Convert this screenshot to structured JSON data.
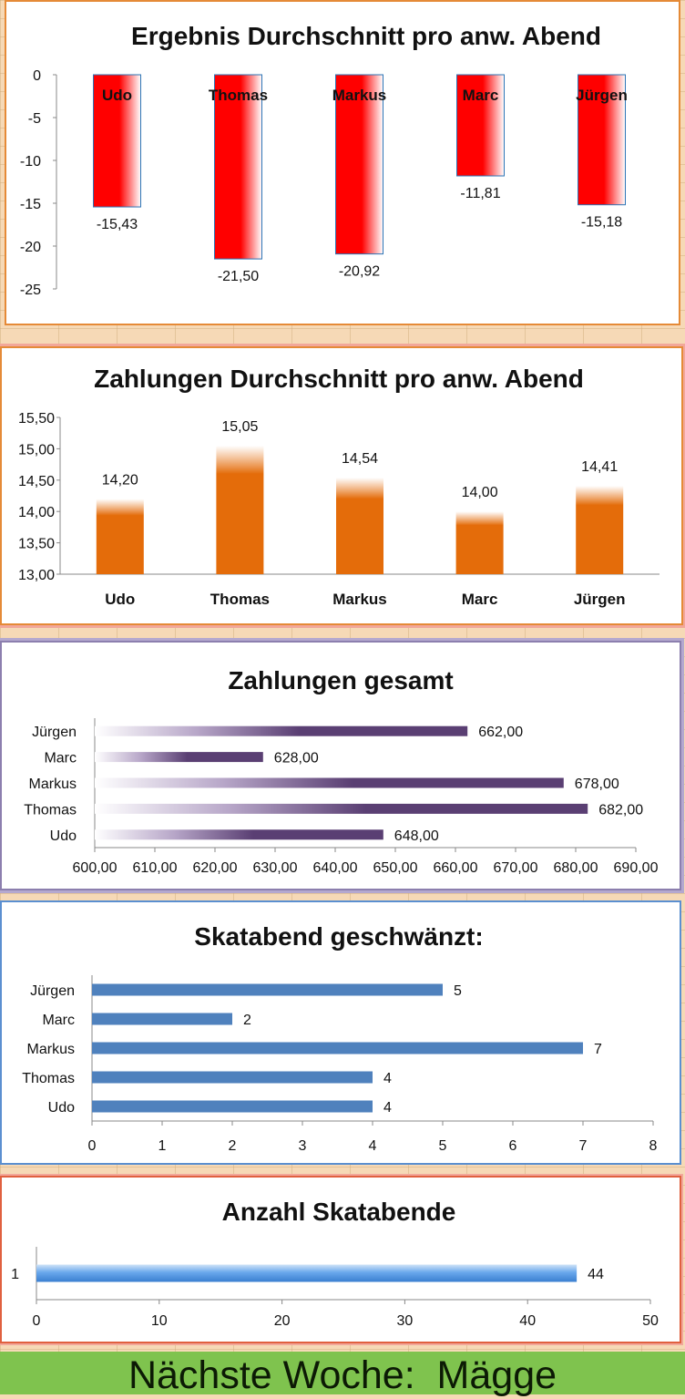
{
  "footer_text": "Nächste Woche:  Mägge",
  "colors": {
    "ergebnis_bar": "#ff0000",
    "zahlungen_bar": "#e46c0a",
    "gesamt_bar": "#5a3f73",
    "geschwaenzt_bar": "#4f81bd",
    "abende_bar": "#4a90e2",
    "footer_bg": "#7fc34e"
  },
  "chart_data": [
    {
      "id": "ergebnis",
      "type": "bar",
      "title": "Ergebnis Durchschnitt pro anw. Abend",
      "categories": [
        "Udo",
        "Thomas",
        "Markus",
        "Marc",
        "Jürgen"
      ],
      "values": [
        -15.43,
        -21.5,
        -20.92,
        -11.81,
        -15.18
      ],
      "value_labels": [
        "-15,43",
        "-21,50",
        "-20,92",
        "-11,81",
        "-15,18"
      ],
      "ylim": [
        -25,
        0
      ],
      "yticks": [
        "0",
        "-5",
        "-10",
        "-15",
        "-20",
        "-25"
      ],
      "xlabel": "",
      "ylabel": ""
    },
    {
      "id": "zahlungen",
      "type": "bar",
      "title": "Zahlungen Durchschnitt pro anw. Abend",
      "categories": [
        "Udo",
        "Thomas",
        "Markus",
        "Marc",
        "Jürgen"
      ],
      "values": [
        14.2,
        15.05,
        14.54,
        14.0,
        14.41
      ],
      "value_labels": [
        "14,20",
        "15,05",
        "14,54",
        "14,00",
        "14,41"
      ],
      "ylim": [
        13.0,
        15.5
      ],
      "yticks": [
        "15,50",
        "15,00",
        "14,50",
        "14,00",
        "13,50",
        "13,00"
      ],
      "xlabel": "",
      "ylabel": ""
    },
    {
      "id": "gesamt",
      "type": "bar",
      "orientation": "horizontal",
      "title": "Zahlungen gesamt",
      "categories": [
        "Jürgen",
        "Marc",
        "Markus",
        "Thomas",
        "Udo"
      ],
      "values": [
        662,
        628,
        678,
        682,
        648
      ],
      "value_labels": [
        "662,00",
        "628,00",
        "678,00",
        "682,00",
        "648,00"
      ],
      "xlim": [
        600,
        690
      ],
      "xticks": [
        "600,00",
        "610,00",
        "620,00",
        "630,00",
        "640,00",
        "650,00",
        "660,00",
        "670,00",
        "680,00",
        "690,00"
      ],
      "xlabel": "",
      "ylabel": ""
    },
    {
      "id": "geschwaenzt",
      "type": "bar",
      "orientation": "horizontal",
      "title": "Skatabend geschwänzt:",
      "categories": [
        "Jürgen",
        "Marc",
        "Markus",
        "Thomas",
        "Udo"
      ],
      "values": [
        5,
        2,
        7,
        4,
        4
      ],
      "value_labels": [
        "5",
        "2",
        "7",
        "4",
        "4"
      ],
      "xlim": [
        0,
        8
      ],
      "xticks": [
        "0",
        "1",
        "2",
        "3",
        "4",
        "5",
        "6",
        "7",
        "8"
      ],
      "xlabel": "",
      "ylabel": ""
    },
    {
      "id": "abende",
      "type": "bar",
      "orientation": "horizontal",
      "title": "Anzahl Skatabende",
      "categories": [
        "1"
      ],
      "values": [
        44
      ],
      "value_labels": [
        "44"
      ],
      "xlim": [
        0,
        50
      ],
      "xticks": [
        "0",
        "10",
        "20",
        "30",
        "40",
        "50"
      ],
      "xlabel": "",
      "ylabel": ""
    }
  ]
}
